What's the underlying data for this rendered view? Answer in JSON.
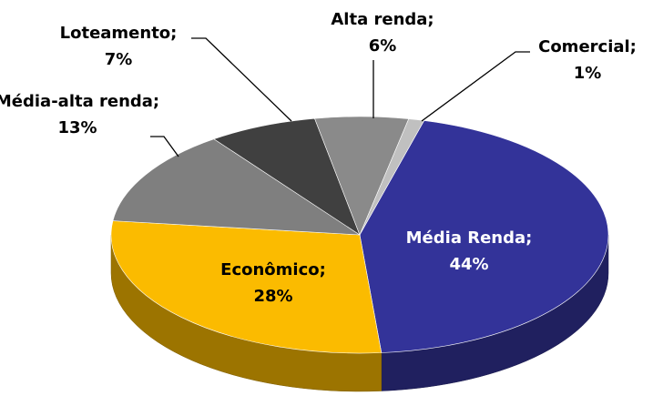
{
  "chart_data": {
    "type": "pie3d",
    "categories": [
      "Média Renda;",
      "Econômico;",
      "Média-alta renda;",
      "Loteamento;",
      "Alta renda;",
      "Comercial;"
    ],
    "values": [
      44,
      28,
      13,
      7,
      6,
      1
    ],
    "value_labels": [
      "44%",
      "28%",
      "13%",
      "7%",
      "6%",
      "1%"
    ],
    "colors": [
      "#333399",
      "#fbbb00",
      "#7f7f7f",
      "#404040",
      "#8a8a8a",
      "#c0c0c0"
    ]
  }
}
